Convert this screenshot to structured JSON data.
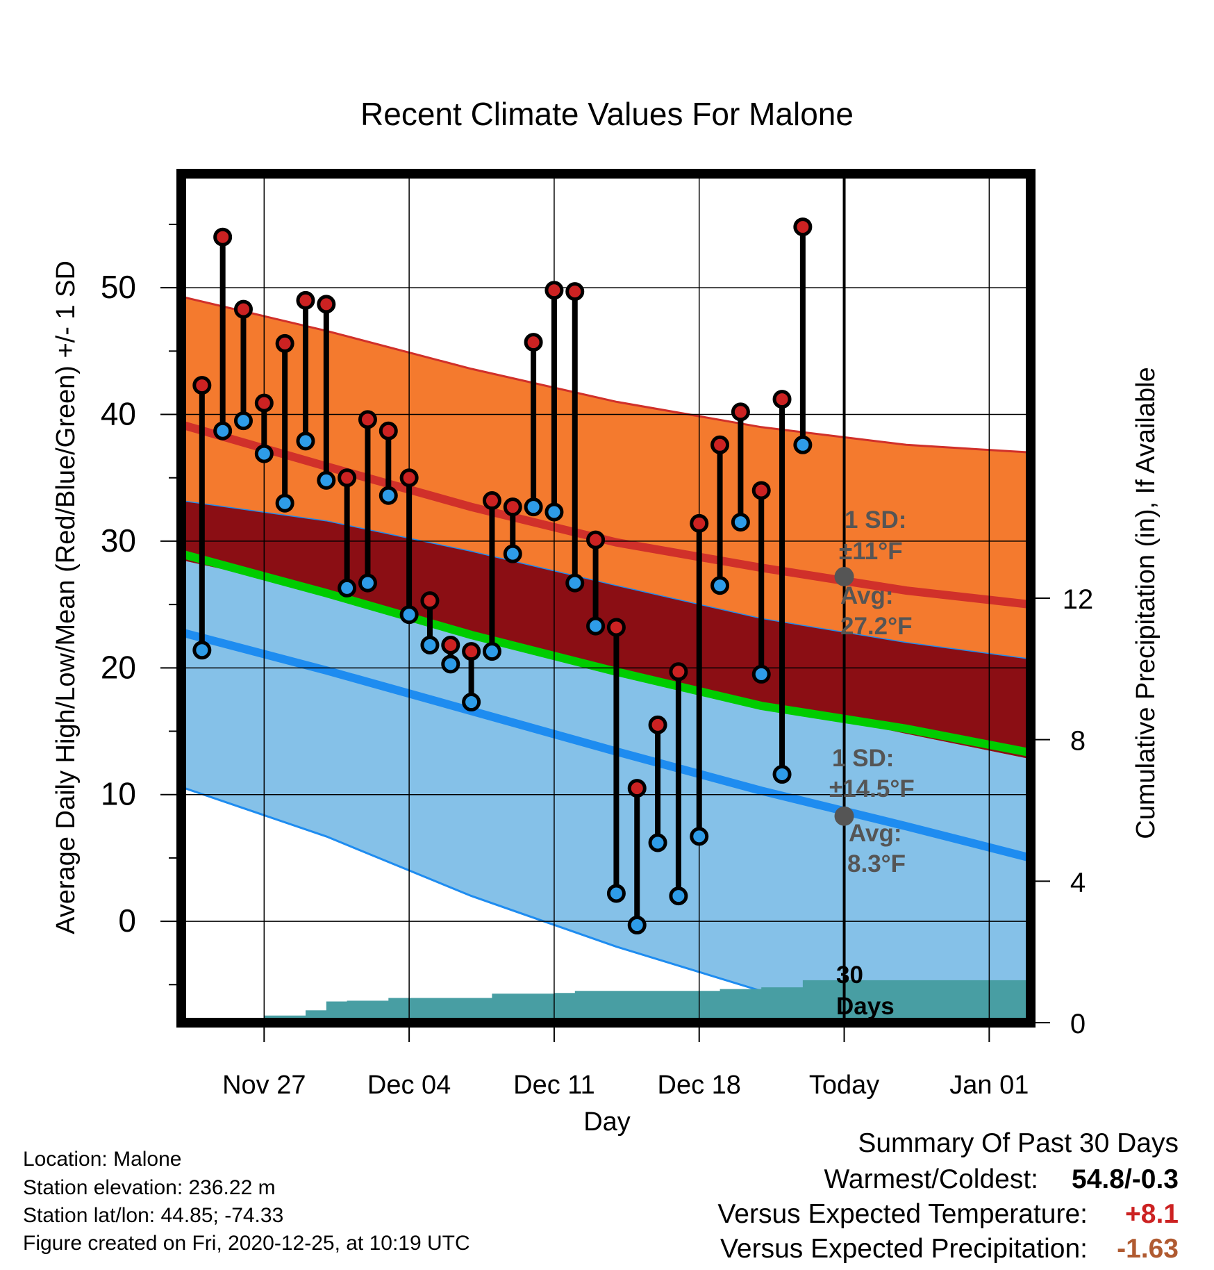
{
  "chart_data": {
    "type": "line",
    "title": "Recent Climate Values For Malone",
    "xlabel": "Day",
    "ylabel_left": "Average Daily High/Low/Mean (Red/Blue/Green) +/- 1 SD",
    "ylabel_right": "Cumulative Precipitation (in), If Available",
    "xlim": [
      "2020-11-23",
      "2021-01-03"
    ],
    "ylim_left": [
      -8,
      59
    ],
    "ylim_right": [
      0,
      24
    ],
    "grid": true,
    "x_ticks": [
      {
        "date": "2020-11-27",
        "label": "Nov 27"
      },
      {
        "date": "2020-12-04",
        "label": "Dec 04"
      },
      {
        "date": "2020-12-11",
        "label": "Dec 11"
      },
      {
        "date": "2020-12-18",
        "label": "Dec 18"
      },
      {
        "date": "2020-12-25",
        "label": "Today"
      },
      {
        "date": "2021-01-01",
        "label": "Jan 01"
      }
    ],
    "y_ticks_left": [
      0,
      10,
      20,
      30,
      40,
      50
    ],
    "y_ticks_right": [
      0,
      4,
      8,
      12
    ],
    "today": "2020-12-25",
    "observations": {
      "dates": [
        "2020-11-24",
        "2020-11-25",
        "2020-11-26",
        "2020-11-27",
        "2020-11-28",
        "2020-11-29",
        "2020-11-30",
        "2020-12-01",
        "2020-12-02",
        "2020-12-03",
        "2020-12-04",
        "2020-12-05",
        "2020-12-06",
        "2020-12-07",
        "2020-12-08",
        "2020-12-09",
        "2020-12-10",
        "2020-12-11",
        "2020-12-12",
        "2020-12-13",
        "2020-12-14",
        "2020-12-15",
        "2020-12-16",
        "2020-12-17",
        "2020-12-18",
        "2020-12-19",
        "2020-12-20",
        "2020-12-21",
        "2020-12-22",
        "2020-12-23",
        "2020-12-24"
      ],
      "high": [
        42.3,
        54.0,
        48.3,
        40.9,
        45.6,
        49.0,
        48.7,
        35.0,
        39.6,
        38.7,
        35.0,
        25.3,
        21.8,
        21.3,
        33.2,
        32.7,
        45.7,
        49.8,
        49.7,
        30.1,
        23.2,
        10.5,
        15.5,
        19.7,
        31.4,
        37.6,
        40.2,
        34.0,
        41.2,
        54.8,
        null
      ],
      "low": [
        21.4,
        38.7,
        39.5,
        36.9,
        33.0,
        37.9,
        34.8,
        26.3,
        26.7,
        33.6,
        24.2,
        21.8,
        20.3,
        17.3,
        21.3,
        29.0,
        32.7,
        32.3,
        26.7,
        23.3,
        2.2,
        -0.3,
        6.2,
        2.0,
        6.7,
        26.5,
        31.5,
        19.5,
        11.6,
        37.6,
        null
      ]
    },
    "climatology": {
      "dates": [
        "2020-11-23",
        "2020-11-30",
        "2020-12-07",
        "2020-12-14",
        "2020-12-21",
        "2020-12-28",
        "2021-01-03"
      ],
      "avg_high": [
        39.2,
        35.9,
        32.7,
        29.9,
        27.9,
        26.1,
        25.0
      ],
      "avg_high_plus_sd": [
        49.3,
        46.6,
        43.6,
        41.0,
        39.0,
        37.6,
        37.0
      ],
      "avg_high_minus_sd": [
        33.2,
        31.6,
        29.2,
        26.5,
        23.9,
        22.0,
        20.7
      ],
      "avg_mean": [
        29.0,
        25.9,
        22.6,
        19.7,
        17.0,
        15.2,
        13.3
      ],
      "avg_low": [
        22.8,
        19.8,
        16.6,
        13.4,
        10.3,
        7.5,
        5.0
      ],
      "avg_low_plus_sd": [
        28.5,
        26.0,
        22.8,
        20.0,
        17.2,
        14.8,
        12.8
      ],
      "avg_low_minus_sd": [
        10.6,
        6.7,
        2.0,
        -2.0,
        -5.5,
        -8.0,
        -9.0
      ]
    },
    "precipitation": {
      "dates": [
        "2020-11-24",
        "2020-11-25",
        "2020-11-26",
        "2020-11-27",
        "2020-11-28",
        "2020-11-29",
        "2020-11-30",
        "2020-12-01",
        "2020-12-02",
        "2020-12-03",
        "2020-12-04",
        "2020-12-05",
        "2020-12-06",
        "2020-12-07",
        "2020-12-08",
        "2020-12-09",
        "2020-12-10",
        "2020-12-11",
        "2020-12-12",
        "2020-12-13",
        "2020-12-14",
        "2020-12-15",
        "2020-12-16",
        "2020-12-17",
        "2020-12-18",
        "2020-12-19",
        "2020-12-20",
        "2020-12-21",
        "2020-12-22",
        "2020-12-23",
        "2020-12-24",
        "2021-01-03"
      ],
      "cumulative": [
        0.0,
        0.0,
        0.05,
        0.2,
        0.2,
        0.35,
        0.6,
        0.62,
        0.62,
        0.7,
        0.7,
        0.7,
        0.7,
        0.7,
        0.82,
        0.82,
        0.82,
        0.84,
        0.9,
        0.9,
        0.9,
        0.9,
        0.9,
        0.9,
        0.9,
        0.95,
        0.95,
        1.0,
        1.0,
        1.2,
        1.2,
        1.2
      ]
    },
    "annotations": {
      "high_sd_label": "1 SD:",
      "high_sd_value": "±11°F",
      "high_avg_label": "Avg:",
      "high_avg_value": "27.2°F",
      "high_avg_today": 27.2,
      "low_sd_label": "1 SD:",
      "low_sd_value": "±14.5°F",
      "low_avg_label": "Avg:",
      "low_avg_value": "8.3°F",
      "low_avg_today": 8.3,
      "days_line1": "30",
      "days_line2": "Days"
    },
    "colors": {
      "high_band": "#f47a2e",
      "high_band_edge": "#d0302a",
      "high_avg": "#d0302a",
      "mean_band": "#8b0e14",
      "mean_line": "#00cc00",
      "low_band": "#85c1e8",
      "low_avg": "#1e8cf0",
      "low_band_edge": "#1e8cf0",
      "precip": "#489ea3",
      "high_marker": "#cc2222",
      "low_marker": "#2e9ce8",
      "annotation": "#555555",
      "temp_anomaly": "#cc2222",
      "precip_anomaly": "#b05a30"
    }
  },
  "station": {
    "location": "Location: Malone",
    "elevation": "Station elevation: 236.22 m",
    "latlon": "Station lat/lon: 44.85; -74.33",
    "created": "Figure created on Fri, 2020-12-25, at 10:19 UTC"
  },
  "summary": {
    "heading": "Summary Of Past 30 Days",
    "warmest_coldest_label": "Warmest/Coldest:",
    "warmest_coldest_value": "54.8/-0.3",
    "temp_label": "Versus Expected Temperature:",
    "temp_value": "+8.1",
    "precip_label": "Versus Expected Precipitation:",
    "precip_value": "-1.63"
  }
}
